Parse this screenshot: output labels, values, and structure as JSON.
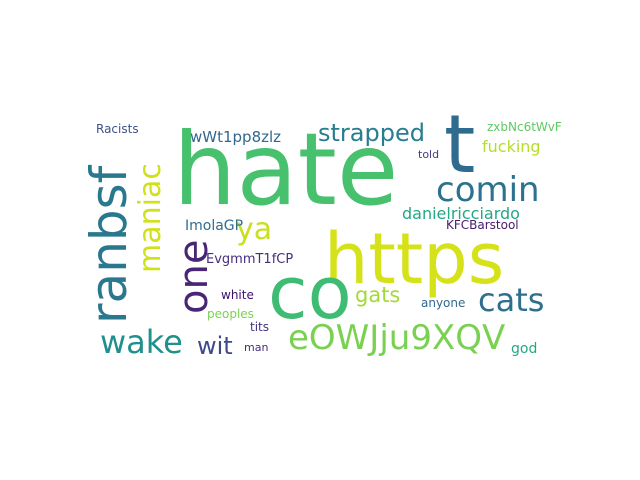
{
  "words": [
    {
      "id": "hate",
      "text": "hate",
      "color": "#47c16e"
    },
    {
      "id": "https",
      "text": "https",
      "color": "#d5e21a"
    },
    {
      "id": "co",
      "text": "co",
      "color": "#3fbc73"
    },
    {
      "id": "t",
      "text": "t",
      "color": "#2f6b8e"
    },
    {
      "id": "ranbsf",
      "text": "ranbsf",
      "color": "#2a788e"
    },
    {
      "id": "one",
      "text": "one",
      "color": "#482575"
    },
    {
      "id": "maniac",
      "text": "maniac",
      "color": "#d0e11c"
    },
    {
      "id": "comin",
      "text": "comin",
      "color": "#2c728e"
    },
    {
      "id": "cats",
      "text": "cats",
      "color": "#2d708e"
    },
    {
      "id": "wake",
      "text": "wake",
      "color": "#21908d"
    },
    {
      "id": "eOWJju9XQV",
      "text": "eOWJju9XQV",
      "color": "#7ad151"
    },
    {
      "id": "strapped",
      "text": "strapped",
      "color": "#287d8e"
    },
    {
      "id": "ya",
      "text": "ya",
      "color": "#c8e020"
    },
    {
      "id": "wit",
      "text": "wit",
      "color": "#3e4989"
    },
    {
      "id": "gats",
      "text": "gats",
      "color": "#a2da37"
    },
    {
      "id": "danielricciardo",
      "text": "danielricciardo",
      "color": "#22a884"
    },
    {
      "id": "fucking",
      "text": "fucking",
      "color": "#b5de2b"
    },
    {
      "id": "wWt1pp8zlz",
      "text": "wWt1pp8zlz",
      "color": "#31688e"
    },
    {
      "id": "ImolaGP",
      "text": "ImolaGP",
      "color": "#2e6e8e"
    },
    {
      "id": "EvgmmT1fCP",
      "text": "EvgmmT1fCP",
      "color": "#472d7b"
    },
    {
      "id": "zxbNc6tWvF",
      "text": "zxbNc6tWvF",
      "color": "#5ec962"
    },
    {
      "id": "Racists",
      "text": "Racists",
      "color": "#3b528b"
    },
    {
      "id": "told",
      "text": "told",
      "color": "#443983"
    },
    {
      "id": "KFCBarstool",
      "text": "KFCBarstool",
      "color": "#481a6c"
    },
    {
      "id": "white",
      "text": "white",
      "color": "#3b0f70"
    },
    {
      "id": "anyone",
      "text": "anyone",
      "color": "#31688e"
    },
    {
      "id": "peoples",
      "text": "peoples",
      "color": "#7ad151"
    },
    {
      "id": "tits",
      "text": "tits",
      "color": "#46337f"
    },
    {
      "id": "man",
      "text": "man",
      "color": "#472d7b"
    },
    {
      "id": "god",
      "text": "god",
      "color": "#22a884"
    }
  ]
}
